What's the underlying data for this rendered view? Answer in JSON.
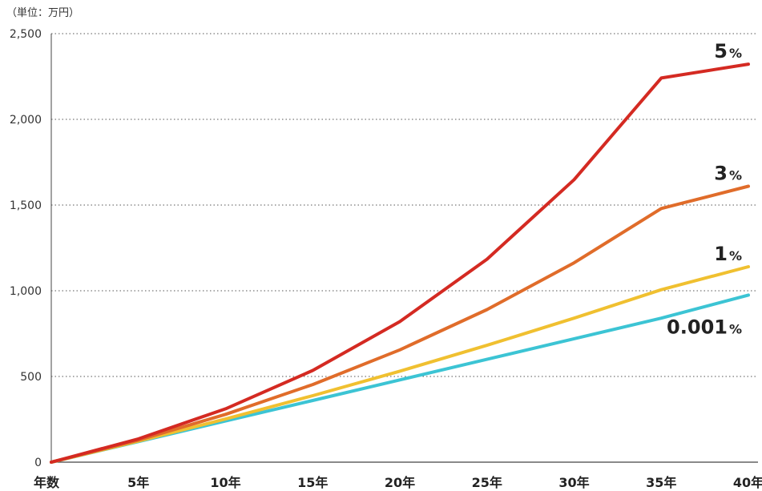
{
  "chart_data": {
    "type": "line",
    "unit_label": "（単位：万円）",
    "x_axis_label": "年数",
    "x": [
      0,
      5,
      10,
      15,
      20,
      25,
      30,
      35,
      40
    ],
    "x_tick_labels": [
      "5年",
      "10年",
      "15年",
      "20年",
      "25年",
      "30年",
      "35年",
      "40年"
    ],
    "x_tick_values": [
      5,
      10,
      15,
      20,
      25,
      30,
      35,
      40
    ],
    "y_ticks": [
      0,
      500,
      1000,
      1500,
      2000,
      2500
    ],
    "y_tick_labels": [
      "0",
      "500",
      "1,000",
      "1,500",
      "2,000",
      "2,500"
    ],
    "xlim": [
      0,
      40
    ],
    "ylim": [
      0,
      2500
    ],
    "grid": true,
    "series": [
      {
        "name": "5",
        "suffix": "%",
        "color": "#d42a22",
        "values": [
          0,
          136,
          311,
          535,
          820,
          1184,
          1648,
          2241,
          2322
        ]
      },
      {
        "name": "3",
        "suffix": "%",
        "color": "#e06c2a",
        "values": [
          0,
          129,
          279,
          453,
          655,
          890,
          1163,
          1480,
          1610
        ]
      },
      {
        "name": "1",
        "suffix": "%",
        "color": "#f0c030",
        "values": [
          0,
          123,
          252,
          388,
          531,
          682,
          840,
          1006,
          1140
        ]
      },
      {
        "name": "0.001",
        "suffix": "%",
        "color": "#3cc4d4",
        "values": [
          0,
          120,
          240,
          360,
          480,
          600,
          720,
          840,
          975
        ]
      }
    ]
  }
}
